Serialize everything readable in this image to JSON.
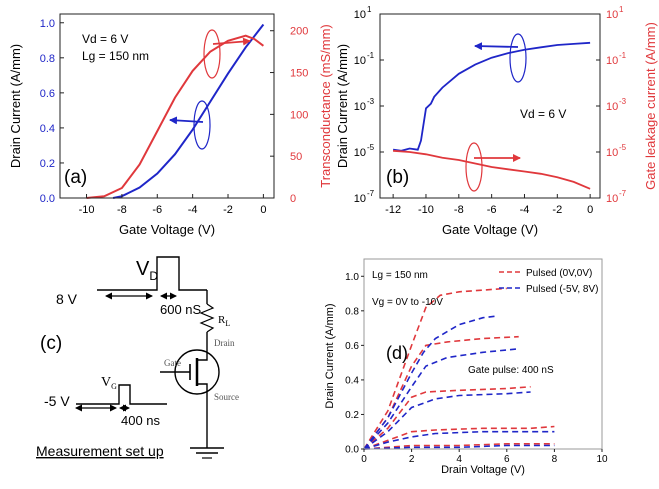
{
  "colors": {
    "blue": "#1f26c8",
    "red": "#e0383c",
    "axis": "#222222",
    "black": "#000000",
    "gray": "#9a9a9a"
  },
  "chart_data": [
    {
      "panel": "(a)",
      "type": "line",
      "xlabel": "Gate Voltage (V)",
      "ylabel": "Drain Current (A/mm)",
      "ylabel_right": "Transconductance (mS/mm)",
      "xlim": [
        -11.5,
        0.6
      ],
      "ylim": [
        0,
        1.05
      ],
      "ylim_right": [
        0,
        220
      ],
      "xticks": [
        -10,
        -8,
        -6,
        -4,
        -2,
        0
      ],
      "xtick_labels": [
        "-10",
        "-8",
        "-6",
        "-4",
        "-2",
        "0"
      ],
      "yticks": [
        0,
        0.2,
        0.4,
        0.6,
        0.8,
        1.0
      ],
      "ytick_labels": [
        "0.0",
        "0.2",
        "0.4",
        "0.6",
        "0.8",
        "1.0"
      ],
      "yticks_right": [
        0,
        50,
        100,
        150,
        200
      ],
      "ytick_labels_right": [
        "0",
        "50",
        "100",
        "150",
        "200"
      ],
      "annotations": [
        "Vd = 6 V",
        "Lg = 150 nm"
      ],
      "series": [
        {
          "name": "Drain Current",
          "axis": "left",
          "color": "blue",
          "x": [
            -8.5,
            -8,
            -7,
            -6,
            -5,
            -4,
            -3,
            -2,
            -1,
            0
          ],
          "y": [
            0,
            0.01,
            0.06,
            0.14,
            0.25,
            0.39,
            0.55,
            0.71,
            0.86,
            0.99
          ]
        },
        {
          "name": "Transconductance",
          "axis": "right",
          "color": "red",
          "x": [
            -10,
            -9,
            -8,
            -7,
            -6,
            -5,
            -4,
            -3,
            -2,
            -1,
            -0.5,
            0
          ],
          "y": [
            0,
            2,
            12,
            40,
            80,
            120,
            152,
            175,
            188,
            194,
            190,
            182
          ]
        }
      ]
    },
    {
      "panel": "(b)",
      "type": "line",
      "xlabel": "Gate Voltage (V)",
      "ylabel": "Drain Current (A/mm)",
      "ylabel_right": "Gate leakage current (A/mm)",
      "yscale": "log",
      "xlim": [
        -12.8,
        0.6
      ],
      "ylim_exp": [
        -7,
        1
      ],
      "xticks": [
        -12,
        -10,
        -8,
        -6,
        -4,
        -2,
        0
      ],
      "xtick_labels": [
        "-12",
        "-10",
        "-8",
        "-6",
        "-4",
        "-2",
        "0"
      ],
      "ytick_exps": [
        -7,
        -5,
        -3,
        -1,
        1
      ],
      "ytick_base": "10",
      "ytick_sups": [
        "-7",
        "-5",
        "-3",
        "-1",
        "1"
      ],
      "annotations": [
        "Vd = 6 V"
      ],
      "series": [
        {
          "name": "Drain Current",
          "axis": "left",
          "color": "blue",
          "x": [
            -12,
            -11.5,
            -11,
            -10.5,
            -10.3,
            -10,
            -9.7,
            -9.5,
            -9,
            -8,
            -7,
            -6,
            -5,
            -4,
            -3,
            -2,
            -1,
            0
          ],
          "log10_y": [
            -4.9,
            -4.95,
            -4.85,
            -4.9,
            -4.5,
            -3.1,
            -2.9,
            -2.6,
            -2.2,
            -1.6,
            -1.2,
            -0.9,
            -0.7,
            -0.55,
            -0.45,
            -0.35,
            -0.3,
            -0.25
          ]
        },
        {
          "name": "Gate leakage current",
          "axis": "right",
          "color": "red",
          "x": [
            -12,
            -11,
            -10,
            -9,
            -8,
            -7,
            -6,
            -5,
            -4,
            -3,
            -2,
            -1,
            0
          ],
          "log10_y": [
            -4.95,
            -5.0,
            -5.1,
            -5.25,
            -5.35,
            -5.5,
            -5.65,
            -5.75,
            -5.85,
            -5.95,
            -6.1,
            -6.3,
            -6.6
          ]
        }
      ]
    },
    {
      "panel": "(d)",
      "type": "line",
      "xlabel": "Drain Voltage (V)",
      "ylabel": "Drain Current (A/mm)",
      "xlim": [
        0,
        10
      ],
      "ylim": [
        0,
        1.1
      ],
      "xticks": [
        0,
        2,
        4,
        6,
        8,
        10
      ],
      "xtick_labels": [
        "0",
        "2",
        "4",
        "6",
        "8",
        "10"
      ],
      "yticks": [
        0,
        0.2,
        0.4,
        0.6,
        0.8,
        1.0
      ],
      "ytick_labels": [
        "0.0",
        "0.2",
        "0.4",
        "0.6",
        "0.8",
        "1.0"
      ],
      "annotations": [
        "Lg = 150 nm",
        "Vg = 0V to -10V",
        "Gate pulse: 400 nS"
      ],
      "legend": [
        "Pulsed (0V,0V)",
        "Pulsed (-5V, 8V)"
      ],
      "legend_position": "top-right",
      "series": [
        {
          "name": "Pulsed (0V,0V) Vg=0V",
          "color": "red",
          "x": [
            0,
            1,
            2,
            2.6,
            3.2,
            4,
            5,
            6
          ],
          "y": [
            0,
            0.22,
            0.6,
            0.82,
            0.89,
            0.91,
            0.92,
            0.93
          ]
        },
        {
          "name": "Pulsed (0V,0V) Vg=-2V",
          "color": "red",
          "x": [
            0,
            1,
            2,
            2.6,
            3.5,
            5,
            6.5
          ],
          "y": [
            0,
            0.18,
            0.48,
            0.6,
            0.62,
            0.64,
            0.65
          ]
        },
        {
          "name": "Pulsed (0V,0V) Vg=-4V",
          "color": "red",
          "x": [
            0,
            1,
            2,
            2.6,
            4,
            6,
            7
          ],
          "y": [
            0,
            0.12,
            0.3,
            0.33,
            0.34,
            0.35,
            0.36
          ]
        },
        {
          "name": "Pulsed (0V,0V) Vg=-6V",
          "color": "red",
          "x": [
            0,
            1,
            2,
            3,
            5,
            7,
            8
          ],
          "y": [
            0,
            0.05,
            0.1,
            0.11,
            0.12,
            0.12,
            0.13
          ]
        },
        {
          "name": "Pulsed (0V,0V) Vg=-8V",
          "color": "red",
          "x": [
            0,
            1,
            2,
            4,
            6,
            8
          ],
          "y": [
            0,
            0.01,
            0.02,
            0.02,
            0.03,
            0.03
          ]
        },
        {
          "name": "Pulsed (-5V, 8V) Vg=0V",
          "color": "blue",
          "x": [
            0,
            1,
            2,
            2.5,
            3,
            4,
            5,
            5.6
          ],
          "y": [
            0,
            0.18,
            0.44,
            0.56,
            0.64,
            0.72,
            0.76,
            0.77
          ]
        },
        {
          "name": "Pulsed (-5V, 8V) Vg=-2V",
          "color": "blue",
          "x": [
            0,
            1,
            2,
            2.6,
            3.5,
            5,
            6.5
          ],
          "y": [
            0,
            0.15,
            0.36,
            0.48,
            0.53,
            0.56,
            0.58
          ]
        },
        {
          "name": "Pulsed (-5V, 8V) Vg=-4V",
          "color": "blue",
          "x": [
            0,
            1,
            2,
            3,
            4,
            6,
            7
          ],
          "y": [
            0,
            0.1,
            0.24,
            0.29,
            0.31,
            0.32,
            0.33
          ]
        },
        {
          "name": "Pulsed (-5V, 8V) Vg=-6V",
          "color": "blue",
          "x": [
            0,
            1,
            2,
            3,
            5,
            7,
            8
          ],
          "y": [
            0,
            0.04,
            0.07,
            0.09,
            0.1,
            0.1,
            0.1
          ]
        },
        {
          "name": "Pulsed (-5V, 8V) Vg=-8V",
          "color": "blue",
          "x": [
            0,
            2,
            4,
            6,
            8
          ],
          "y": [
            0,
            0.01,
            0.01,
            0.02,
            0.02
          ]
        }
      ]
    }
  ],
  "panels": {
    "a": {
      "label": "(a)",
      "note1": "Vd = 6 V",
      "note2": "Lg = 150 nm"
    },
    "b": {
      "label": "(b)",
      "note1": "Vd = 6 V"
    },
    "c": {
      "label": "(c)",
      "vd_label": "V",
      "vd_sub": "D",
      "drain_bias": "8 V",
      "drain_pulse": "600 nS",
      "vg_label": "V",
      "vg_sub": "G",
      "gate_bias": "-5 V",
      "gate_pulse": "400 ns",
      "rl_label": "R",
      "rl_sub": "L",
      "drain_terminal": "Drain",
      "gate_terminal": "Gate",
      "source_terminal": "Source",
      "caption": "Measurement set up"
    },
    "d": {
      "label": "(d)"
    }
  }
}
